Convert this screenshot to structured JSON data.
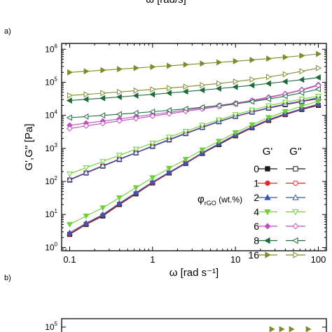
{
  "header_cut_text": "ω [rad/s]",
  "panel_a_label": "a)",
  "panel_b_label": "b)",
  "chart_data": [
    {
      "type": "line",
      "title": "",
      "xlabel": "ω [rad s⁻¹]",
      "ylabel": "G',G'' [Pa]",
      "xscale": "log",
      "yscale": "log",
      "xlim": [
        0.08,
        125
      ],
      "ylim": [
        0.8,
        1500000
      ],
      "x_ticks": [
        {
          "v": 0.1,
          "label": "0.1"
        },
        {
          "v": 1,
          "label": "1"
        },
        {
          "v": 10,
          "label": "10"
        },
        {
          "v": 100,
          "label": "100"
        }
      ],
      "y_ticks": [
        {
          "v": 1,
          "mant": "10",
          "exp": "0"
        },
        {
          "v": 10,
          "mant": "10",
          "exp": "1"
        },
        {
          "v": 100,
          "mant": "10",
          "exp": "2"
        },
        {
          "v": 1000,
          "mant": "10",
          "exp": "3"
        },
        {
          "v": 10000,
          "mant": "10",
          "exp": "4"
        },
        {
          "v": 100000,
          "mant": "10",
          "exp": "5"
        },
        {
          "v": 1000000,
          "mant": "10",
          "exp": "6"
        }
      ],
      "legend": {
        "position": "right",
        "col_headers": [
          "G'",
          "G''"
        ],
        "group_title": "φrGO (wt.%)",
        "group_title_main": "φ",
        "group_title_sub": "rGO",
        "group_title_rest": " (wt.%)",
        "rows": [
          {
            "label": "0",
            "color": "#1a1a1a",
            "marker": "square"
          },
          {
            "label": "1",
            "color": "#e8262a",
            "marker": "circle"
          },
          {
            "label": "2",
            "color": "#3a55b8",
            "marker": "triangle-up"
          },
          {
            "label": "4",
            "color": "#6cd23a",
            "marker": "triangle-down"
          },
          {
            "label": "6",
            "color": "#c04fc0",
            "marker": "diamond"
          },
          {
            "label": "8",
            "color": "#1e6a3c",
            "marker": "triangle-left"
          },
          {
            "label": "16",
            "color": "#7f8a2a",
            "marker": "triangle-right"
          }
        ]
      },
      "x": [
        0.1,
        0.158,
        0.251,
        0.398,
        0.631,
        1.0,
        1.585,
        2.512,
        3.981,
        6.31,
        10.0,
        15.85,
        25.12,
        39.81,
        63.1,
        100.0
      ],
      "series": [
        {
          "name": "G' 0 wt.%",
          "group": "0",
          "color": "#1a1a1a",
          "marker": "square",
          "filled": true,
          "values": [
            2.5,
            5,
            9,
            20,
            42,
            90,
            180,
            350,
            700,
            1300,
            2400,
            4200,
            7000,
            10500,
            15000,
            20000
          ]
        },
        {
          "name": "G'' 0 wt.%",
          "group": "0",
          "color": "#1a1a1a",
          "marker": "square",
          "filled": false,
          "values": [
            110,
            180,
            290,
            460,
            730,
            1150,
            1800,
            2800,
            4300,
            6400,
            9200,
            12500,
            16500,
            21000,
            26000,
            32000
          ]
        },
        {
          "name": "G' 1 wt.%",
          "group": "1",
          "color": "#e8262a",
          "marker": "circle",
          "filled": true,
          "values": [
            2.6,
            5.2,
            9.5,
            21,
            44,
            93,
            185,
            360,
            720,
            1350,
            2500,
            4300,
            7200,
            10800,
            15500,
            21000
          ]
        },
        {
          "name": "G'' 1 wt.%",
          "group": "1",
          "color": "#e8262a",
          "marker": "circle",
          "filled": false,
          "values": [
            112,
            183,
            295,
            470,
            740,
            1170,
            1830,
            2850,
            4350,
            6500,
            9300,
            12700,
            16800,
            21500,
            26500,
            33000
          ]
        },
        {
          "name": "G' 2 wt.%",
          "group": "2",
          "color": "#3a55b8",
          "marker": "triangle-up",
          "filled": true,
          "values": [
            2.8,
            5.5,
            10,
            22,
            46,
            97,
            190,
            370,
            740,
            1400,
            2600,
            4500,
            7500,
            11200,
            16000,
            22000
          ]
        },
        {
          "name": "G'' 2 wt.%",
          "group": "2",
          "color": "#3a55b8",
          "marker": "triangle-up",
          "filled": false,
          "values": [
            115,
            186,
            300,
            478,
            750,
            1190,
            1860,
            2900,
            4400,
            6600,
            9400,
            12900,
            17000,
            22000,
            27000,
            34000
          ]
        },
        {
          "name": "G' 4 wt.%",
          "group": "4",
          "color": "#6cd23a",
          "marker": "triangle-down",
          "filled": true,
          "values": [
            5,
            9,
            16,
            32,
            65,
            130,
            250,
            470,
            900,
            1650,
            3000,
            5200,
            8600,
            13000,
            19000,
            27000
          ]
        },
        {
          "name": "G'' 4 wt.%",
          "group": "4",
          "color": "#6cd23a",
          "marker": "triangle-down",
          "filled": false,
          "values": [
            170,
            260,
            400,
            620,
            950,
            1450,
            2200,
            3300,
            5000,
            7300,
            10500,
            14500,
            19500,
            25000,
            31000,
            38000
          ]
        },
        {
          "name": "G' 6 wt.%",
          "group": "6",
          "color": "#c04fc0",
          "marker": "diamond",
          "filled": true,
          "values": [
            5000,
            5800,
            6700,
            7800,
            9100,
            10600,
            12300,
            14300,
            16800,
            19800,
            23500,
            28500,
            35500,
            45000,
            60000,
            85000
          ]
        },
        {
          "name": "G'' 6 wt.%",
          "group": "6",
          "color": "#c04fc0",
          "marker": "diamond",
          "filled": false,
          "values": [
            4000,
            4800,
            5700,
            6800,
            8000,
            9500,
            11200,
            13200,
            15600,
            18500,
            22000,
            27000,
            34000,
            44000,
            58000,
            80000
          ]
        },
        {
          "name": "G' 8 wt.%",
          "group": "8",
          "color": "#1e6a3c",
          "marker": "triangle-left",
          "filled": true,
          "values": [
            28000,
            30500,
            33000,
            36000,
            39500,
            43000,
            47500,
            52500,
            58000,
            64500,
            72000,
            81000,
            92000,
            105000,
            120000,
            140000
          ]
        },
        {
          "name": "G'' 8 wt.%",
          "group": "8",
          "color": "#1e6a3c",
          "marker": "triangle-left",
          "filled": false,
          "values": [
            8500,
            9200,
            10000,
            10800,
            11800,
            12900,
            14200,
            15700,
            17500,
            19800,
            22500,
            26000,
            31000,
            38000,
            48000,
            62000
          ]
        },
        {
          "name": "G' 16 wt.%",
          "group": "16",
          "color": "#7f8a2a",
          "marker": "triangle-right",
          "filled": true,
          "values": [
            200000,
            215000,
            232000,
            250000,
            270000,
            292000,
            316000,
            342000,
            370000,
            400000,
            435000,
            475000,
            520000,
            575000,
            640000,
            720000
          ]
        },
        {
          "name": "G'' 16 wt.%",
          "group": "16",
          "color": "#7f8a2a",
          "marker": "triangle-right",
          "filled": false,
          "values": [
            40000,
            43000,
            47000,
            51000,
            56000,
            61000,
            67000,
            74000,
            82000,
            92000,
            105000,
            122000,
            145000,
            175000,
            215000,
            270000
          ]
        }
      ]
    },
    {
      "type": "line",
      "partial": true,
      "title": "",
      "y_ticks_visible": [
        {
          "mant": "10",
          "exp": "5"
        }
      ]
    }
  ]
}
